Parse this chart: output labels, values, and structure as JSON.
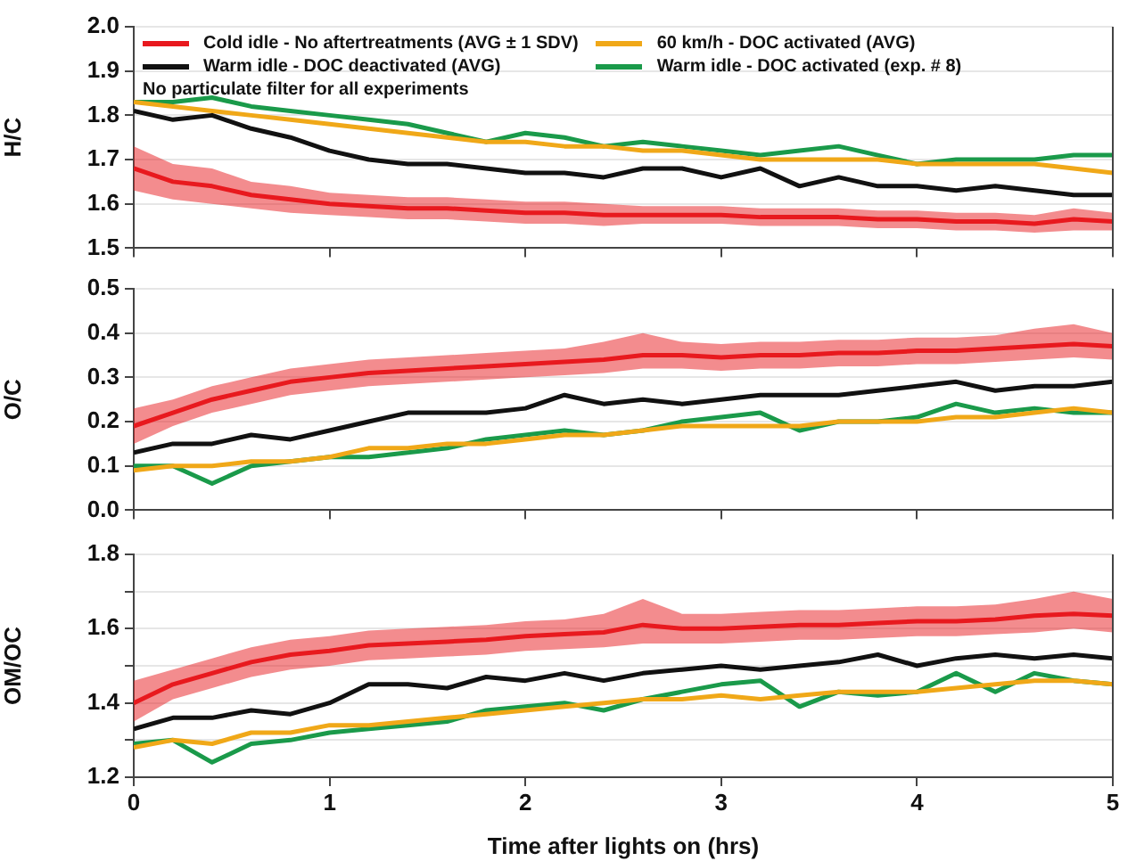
{
  "chart_data": [
    {
      "type": "line",
      "ylabel": "H/C",
      "xlim": [
        0,
        5
      ],
      "ylim": [
        1.5,
        2.0
      ],
      "xticks": [
        0,
        1,
        2,
        3,
        4,
        5
      ],
      "yticks": [
        1.5,
        1.6,
        1.7,
        1.8,
        1.9,
        {
          "value": 2,
          "label": "2.0"
        }
      ],
      "grid": "y",
      "legend": "top left",
      "tick_labels": "y",
      "marker": "none",
      "annotations": [
        "No particulate filter for all experiments"
      ],
      "x": [
        0,
        0.2,
        0.4,
        0.6,
        0.8,
        1.0,
        1.2,
        1.4,
        1.6,
        1.8,
        2.0,
        2.2,
        2.4,
        2.6,
        2.8,
        3.0,
        3.2,
        3.4,
        3.6,
        3.8,
        4.0,
        4.2,
        4.4,
        4.6,
        4.8,
        5.0
      ],
      "series": [
        {
          "name": "Cold idle - No aftertreatments (AVG ± 1 SDV)",
          "color": "#e8191e",
          "values": [
            1.68,
            1.65,
            1.64,
            1.62,
            1.61,
            1.6,
            1.595,
            1.59,
            1.59,
            1.585,
            1.58,
            1.58,
            1.575,
            1.575,
            1.575,
            1.575,
            1.57,
            1.57,
            1.57,
            1.565,
            1.565,
            1.56,
            1.56,
            1.555,
            1.565,
            1.56
          ],
          "lower": [
            1.63,
            1.61,
            1.6,
            1.59,
            1.58,
            1.575,
            1.57,
            1.565,
            1.565,
            1.56,
            1.555,
            1.555,
            1.55,
            1.555,
            1.555,
            1.555,
            1.55,
            1.55,
            1.55,
            1.545,
            1.545,
            1.54,
            1.54,
            1.535,
            1.54,
            1.54
          ],
          "upper": [
            1.73,
            1.69,
            1.68,
            1.65,
            1.64,
            1.625,
            1.62,
            1.615,
            1.615,
            1.61,
            1.605,
            1.605,
            1.6,
            1.595,
            1.595,
            1.595,
            1.59,
            1.59,
            1.59,
            1.585,
            1.585,
            1.58,
            1.58,
            1.575,
            1.59,
            1.58
          ]
        },
        {
          "name": "Warm idle - DOC deactivated (AVG)",
          "color": "#111111",
          "values": [
            1.81,
            1.79,
            1.8,
            1.77,
            1.75,
            1.72,
            1.7,
            1.69,
            1.69,
            1.68,
            1.67,
            1.67,
            1.66,
            1.68,
            1.68,
            1.66,
            1.68,
            1.64,
            1.66,
            1.64,
            1.64,
            1.63,
            1.64,
            1.63,
            1.62,
            1.62
          ]
        },
        {
          "name": "60 km/h - DOC activated (AVG)",
          "color": "#f0a818",
          "values": [
            1.83,
            1.82,
            1.81,
            1.8,
            1.79,
            1.78,
            1.77,
            1.76,
            1.75,
            1.74,
            1.74,
            1.73,
            1.73,
            1.72,
            1.72,
            1.71,
            1.7,
            1.7,
            1.7,
            1.7,
            1.69,
            1.69,
            1.69,
            1.69,
            1.68,
            1.67
          ]
        },
        {
          "name": "Warm idle - DOC activated (exp. # 8)",
          "color": "#1a9a4a",
          "values": [
            1.83,
            1.83,
            1.84,
            1.82,
            1.81,
            1.8,
            1.79,
            1.78,
            1.76,
            1.74,
            1.76,
            1.75,
            1.73,
            1.74,
            1.73,
            1.72,
            1.71,
            1.72,
            1.73,
            1.71,
            1.69,
            1.7,
            1.7,
            1.7,
            1.71,
            1.71
          ]
        }
      ]
    },
    {
      "type": "line",
      "ylabel": "O/C",
      "xlim": [
        0,
        5
      ],
      "ylim": [
        0,
        0.5
      ],
      "xticks": [
        0,
        1,
        2,
        3,
        4,
        5
      ],
      "yticks": [
        {
          "value": 0,
          "label": "0.0"
        },
        0.1,
        0.2,
        0.3,
        0.4,
        0.5
      ],
      "grid": "y",
      "tick_labels": "y",
      "marker": "none",
      "x": [
        0,
        0.2,
        0.4,
        0.6,
        0.8,
        1.0,
        1.2,
        1.4,
        1.6,
        1.8,
        2.0,
        2.2,
        2.4,
        2.6,
        2.8,
        3.0,
        3.2,
        3.4,
        3.6,
        3.8,
        4.0,
        4.2,
        4.4,
        4.6,
        4.8,
        5.0
      ],
      "series": [
        {
          "color": "#e8191e",
          "values": [
            0.19,
            0.22,
            0.25,
            0.27,
            0.29,
            0.3,
            0.31,
            0.315,
            0.32,
            0.325,
            0.33,
            0.335,
            0.34,
            0.35,
            0.35,
            0.345,
            0.35,
            0.35,
            0.355,
            0.355,
            0.36,
            0.36,
            0.365,
            0.37,
            0.375,
            0.37
          ],
          "lower": [
            0.15,
            0.19,
            0.22,
            0.24,
            0.26,
            0.27,
            0.28,
            0.285,
            0.29,
            0.295,
            0.3,
            0.305,
            0.31,
            0.32,
            0.32,
            0.315,
            0.32,
            0.32,
            0.325,
            0.325,
            0.33,
            0.33,
            0.335,
            0.34,
            0.345,
            0.34
          ],
          "upper": [
            0.23,
            0.25,
            0.28,
            0.3,
            0.32,
            0.33,
            0.34,
            0.345,
            0.35,
            0.355,
            0.36,
            0.365,
            0.38,
            0.4,
            0.38,
            0.375,
            0.38,
            0.38,
            0.385,
            0.385,
            0.39,
            0.39,
            0.395,
            0.41,
            0.42,
            0.4
          ]
        },
        {
          "color": "#111111",
          "values": [
            0.13,
            0.15,
            0.15,
            0.17,
            0.16,
            0.18,
            0.2,
            0.22,
            0.22,
            0.22,
            0.23,
            0.26,
            0.24,
            0.25,
            0.24,
            0.25,
            0.26,
            0.26,
            0.26,
            0.27,
            0.28,
            0.29,
            0.27,
            0.28,
            0.28,
            0.29
          ]
        },
        {
          "color": "#f0a818",
          "values": [
            0.09,
            0.1,
            0.1,
            0.11,
            0.11,
            0.12,
            0.14,
            0.14,
            0.15,
            0.15,
            0.16,
            0.17,
            0.17,
            0.18,
            0.19,
            0.19,
            0.19,
            0.19,
            0.2,
            0.2,
            0.2,
            0.21,
            0.21,
            0.22,
            0.23,
            0.22
          ]
        },
        {
          "color": "#1a9a4a",
          "values": [
            0.1,
            0.1,
            0.06,
            0.1,
            0.11,
            0.12,
            0.12,
            0.13,
            0.14,
            0.16,
            0.17,
            0.18,
            0.17,
            0.18,
            0.2,
            0.21,
            0.22,
            0.18,
            0.2,
            0.2,
            0.21,
            0.24,
            0.22,
            0.23,
            0.22,
            0.22
          ]
        }
      ]
    },
    {
      "type": "line",
      "ylabel": "OM/OC",
      "xlabel": "Time after lights on (hrs)",
      "xlim": [
        0,
        5
      ],
      "ylim": [
        1.2,
        1.8
      ],
      "xticks": [
        0,
        1,
        2,
        3,
        4,
        5
      ],
      "yticks": [
        1.2,
        {
          "value": 1.3,
          "label": null
        },
        1.4,
        {
          "value": 1.5,
          "label": null
        },
        1.6,
        {
          "value": 1.7,
          "label": null
        },
        1.8
      ],
      "grid": "y",
      "marker": "none",
      "x": [
        0,
        0.2,
        0.4,
        0.6,
        0.8,
        1.0,
        1.2,
        1.4,
        1.6,
        1.8,
        2.0,
        2.2,
        2.4,
        2.6,
        2.8,
        3.0,
        3.2,
        3.4,
        3.6,
        3.8,
        4.0,
        4.2,
        4.4,
        4.6,
        4.8,
        5.0
      ],
      "series": [
        {
          "color": "#e8191e",
          "values": [
            1.4,
            1.45,
            1.48,
            1.51,
            1.53,
            1.54,
            1.555,
            1.56,
            1.565,
            1.57,
            1.58,
            1.585,
            1.59,
            1.61,
            1.6,
            1.6,
            1.605,
            1.61,
            1.61,
            1.615,
            1.62,
            1.62,
            1.625,
            1.635,
            1.64,
            1.635
          ],
          "lower": [
            1.35,
            1.41,
            1.44,
            1.47,
            1.49,
            1.5,
            1.515,
            1.52,
            1.525,
            1.53,
            1.54,
            1.545,
            1.55,
            1.56,
            1.56,
            1.56,
            1.565,
            1.57,
            1.57,
            1.575,
            1.58,
            1.58,
            1.585,
            1.59,
            1.6,
            1.59
          ],
          "upper": [
            1.46,
            1.49,
            1.52,
            1.55,
            1.57,
            1.58,
            1.595,
            1.6,
            1.605,
            1.61,
            1.62,
            1.625,
            1.64,
            1.68,
            1.64,
            1.64,
            1.645,
            1.65,
            1.65,
            1.655,
            1.66,
            1.66,
            1.665,
            1.68,
            1.7,
            1.68
          ]
        },
        {
          "color": "#111111",
          "values": [
            1.33,
            1.36,
            1.36,
            1.38,
            1.37,
            1.4,
            1.45,
            1.45,
            1.44,
            1.47,
            1.46,
            1.48,
            1.46,
            1.48,
            1.49,
            1.5,
            1.49,
            1.5,
            1.51,
            1.53,
            1.5,
            1.52,
            1.53,
            1.52,
            1.53,
            1.52
          ]
        },
        {
          "color": "#f0a818",
          "values": [
            1.28,
            1.3,
            1.29,
            1.32,
            1.32,
            1.34,
            1.34,
            1.35,
            1.36,
            1.37,
            1.38,
            1.39,
            1.4,
            1.41,
            1.41,
            1.42,
            1.41,
            1.42,
            1.43,
            1.43,
            1.43,
            1.44,
            1.45,
            1.46,
            1.46,
            1.45
          ]
        },
        {
          "color": "#1a9a4a",
          "values": [
            1.29,
            1.3,
            1.24,
            1.29,
            1.3,
            1.32,
            1.33,
            1.34,
            1.35,
            1.38,
            1.39,
            1.4,
            1.38,
            1.41,
            1.43,
            1.45,
            1.46,
            1.39,
            1.43,
            1.42,
            1.43,
            1.48,
            1.43,
            1.48,
            1.46,
            1.45
          ]
        }
      ]
    }
  ]
}
